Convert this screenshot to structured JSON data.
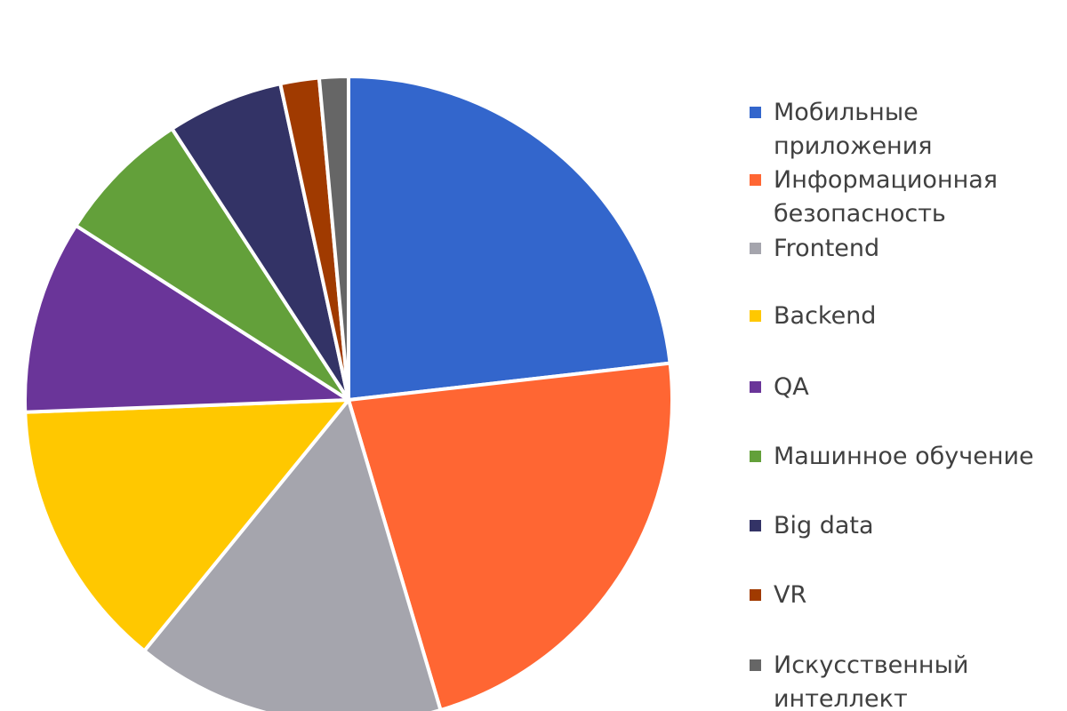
{
  "chart_data": {
    "type": "pie",
    "title": "",
    "legend_position": "right",
    "start_angle_deg": 0,
    "direction": "clockwise",
    "slices": [
      {
        "label": "Мобильные приложения",
        "value": 24,
        "color": "#3366CC"
      },
      {
        "label": "Информационная безопасность",
        "value": 23,
        "color": "#FF6633"
      },
      {
        "label": "Frontend",
        "value": 16,
        "color": "#A5A5AD"
      },
      {
        "label": "Backend",
        "value": 14,
        "color": "#FFC800"
      },
      {
        "label": "QA",
        "value": 10,
        "color": "#6A3599"
      },
      {
        "label": "Машинное обучение",
        "value": 7,
        "color": "#63A03A"
      },
      {
        "label": "Big data",
        "value": 6,
        "color": "#333366"
      },
      {
        "label": "VR",
        "value": 2,
        "color": "#A03A00"
      },
      {
        "label": "Искусственный интеллект",
        "value": 1.5,
        "color": "#666666"
      }
    ]
  }
}
